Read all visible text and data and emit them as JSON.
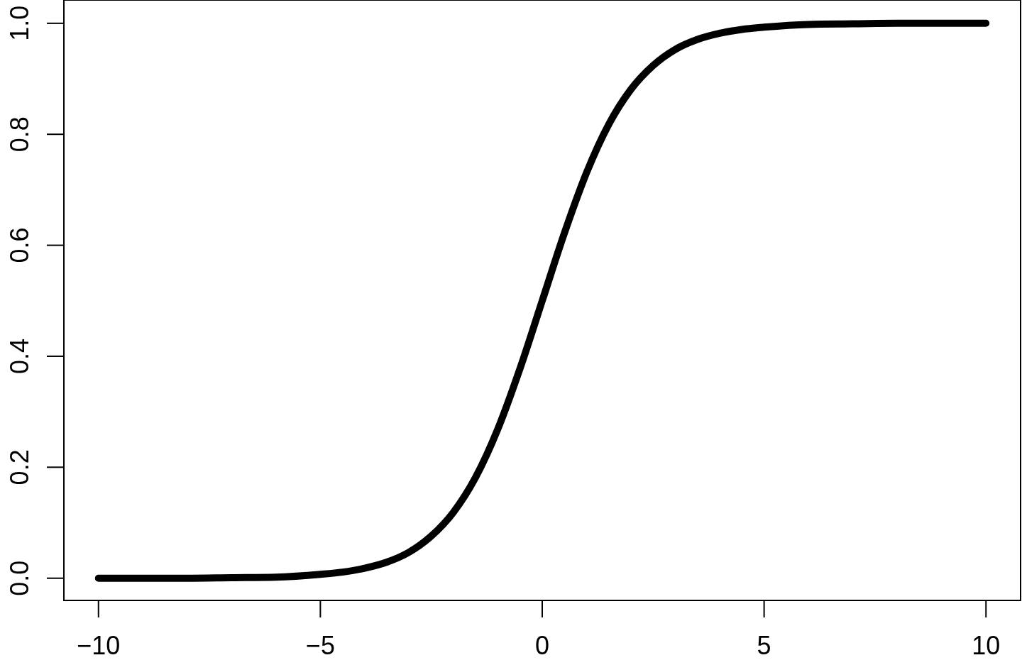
{
  "chart_data": {
    "type": "line",
    "x": [
      -10,
      -9,
      -8,
      -7,
      -6,
      -5,
      -4.5,
      -4,
      -3.5,
      -3,
      -2.5,
      -2,
      -1.5,
      -1,
      -0.5,
      0,
      0.5,
      1,
      1.5,
      2,
      2.5,
      3,
      3.5,
      4,
      4.5,
      5,
      6,
      7,
      8,
      9,
      10
    ],
    "series": [
      {
        "color": "#000000",
        "values": [
          0.0,
          0.0,
          0.0,
          0.001,
          0.002,
          0.007,
          0.011,
          0.018,
          0.029,
          0.047,
          0.076,
          0.119,
          0.182,
          0.269,
          0.378,
          0.5,
          0.622,
          0.731,
          0.818,
          0.881,
          0.924,
          0.953,
          0.971,
          0.982,
          0.989,
          0.993,
          0.998,
          0.999,
          1.0,
          1.0,
          1.0
        ]
      }
    ],
    "xlim": [
      -10.78,
      10.78
    ],
    "ylim": [
      -0.04,
      1.042
    ],
    "xticks": [
      {
        "value": -10,
        "label": "−10"
      },
      {
        "value": -5,
        "label": "−5"
      },
      0,
      5,
      10
    ],
    "yticks": [
      {
        "value": 0,
        "label": "0.0"
      },
      0.2,
      0.4,
      0.6,
      0.8,
      {
        "value": 1,
        "label": "1.0"
      }
    ],
    "grid": false,
    "line_style": "solid",
    "marker": "none"
  }
}
